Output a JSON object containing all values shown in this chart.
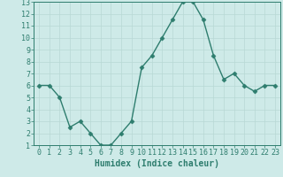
{
  "x": [
    0,
    1,
    2,
    3,
    4,
    5,
    6,
    7,
    8,
    9,
    10,
    11,
    12,
    13,
    14,
    15,
    16,
    17,
    18,
    19,
    20,
    21,
    22,
    23
  ],
  "y": [
    6,
    6,
    5,
    2.5,
    3,
    2,
    1,
    1,
    2,
    3,
    7.5,
    8.5,
    10,
    11.5,
    13,
    13,
    11.5,
    8.5,
    6.5,
    7,
    6,
    5.5,
    6,
    6
  ],
  "line_color": "#2e7d6e",
  "marker": "D",
  "marker_size": 2.5,
  "bg_color": "#ceeae8",
  "grid_color": "#b8d8d4",
  "xlabel": "Humidex (Indice chaleur)",
  "ylabel": "",
  "xlim": [
    -0.5,
    23.5
  ],
  "ylim": [
    1,
    13
  ],
  "yticks": [
    1,
    2,
    3,
    4,
    5,
    6,
    7,
    8,
    9,
    10,
    11,
    12,
    13
  ],
  "xticks": [
    0,
    1,
    2,
    3,
    4,
    5,
    6,
    7,
    8,
    9,
    10,
    11,
    12,
    13,
    14,
    15,
    16,
    17,
    18,
    19,
    20,
    21,
    22,
    23
  ],
  "tick_color": "#2e7d6e",
  "label_color": "#2e7d6e",
  "xlabel_fontsize": 7,
  "tick_fontsize": 6,
  "linewidth": 1.0
}
